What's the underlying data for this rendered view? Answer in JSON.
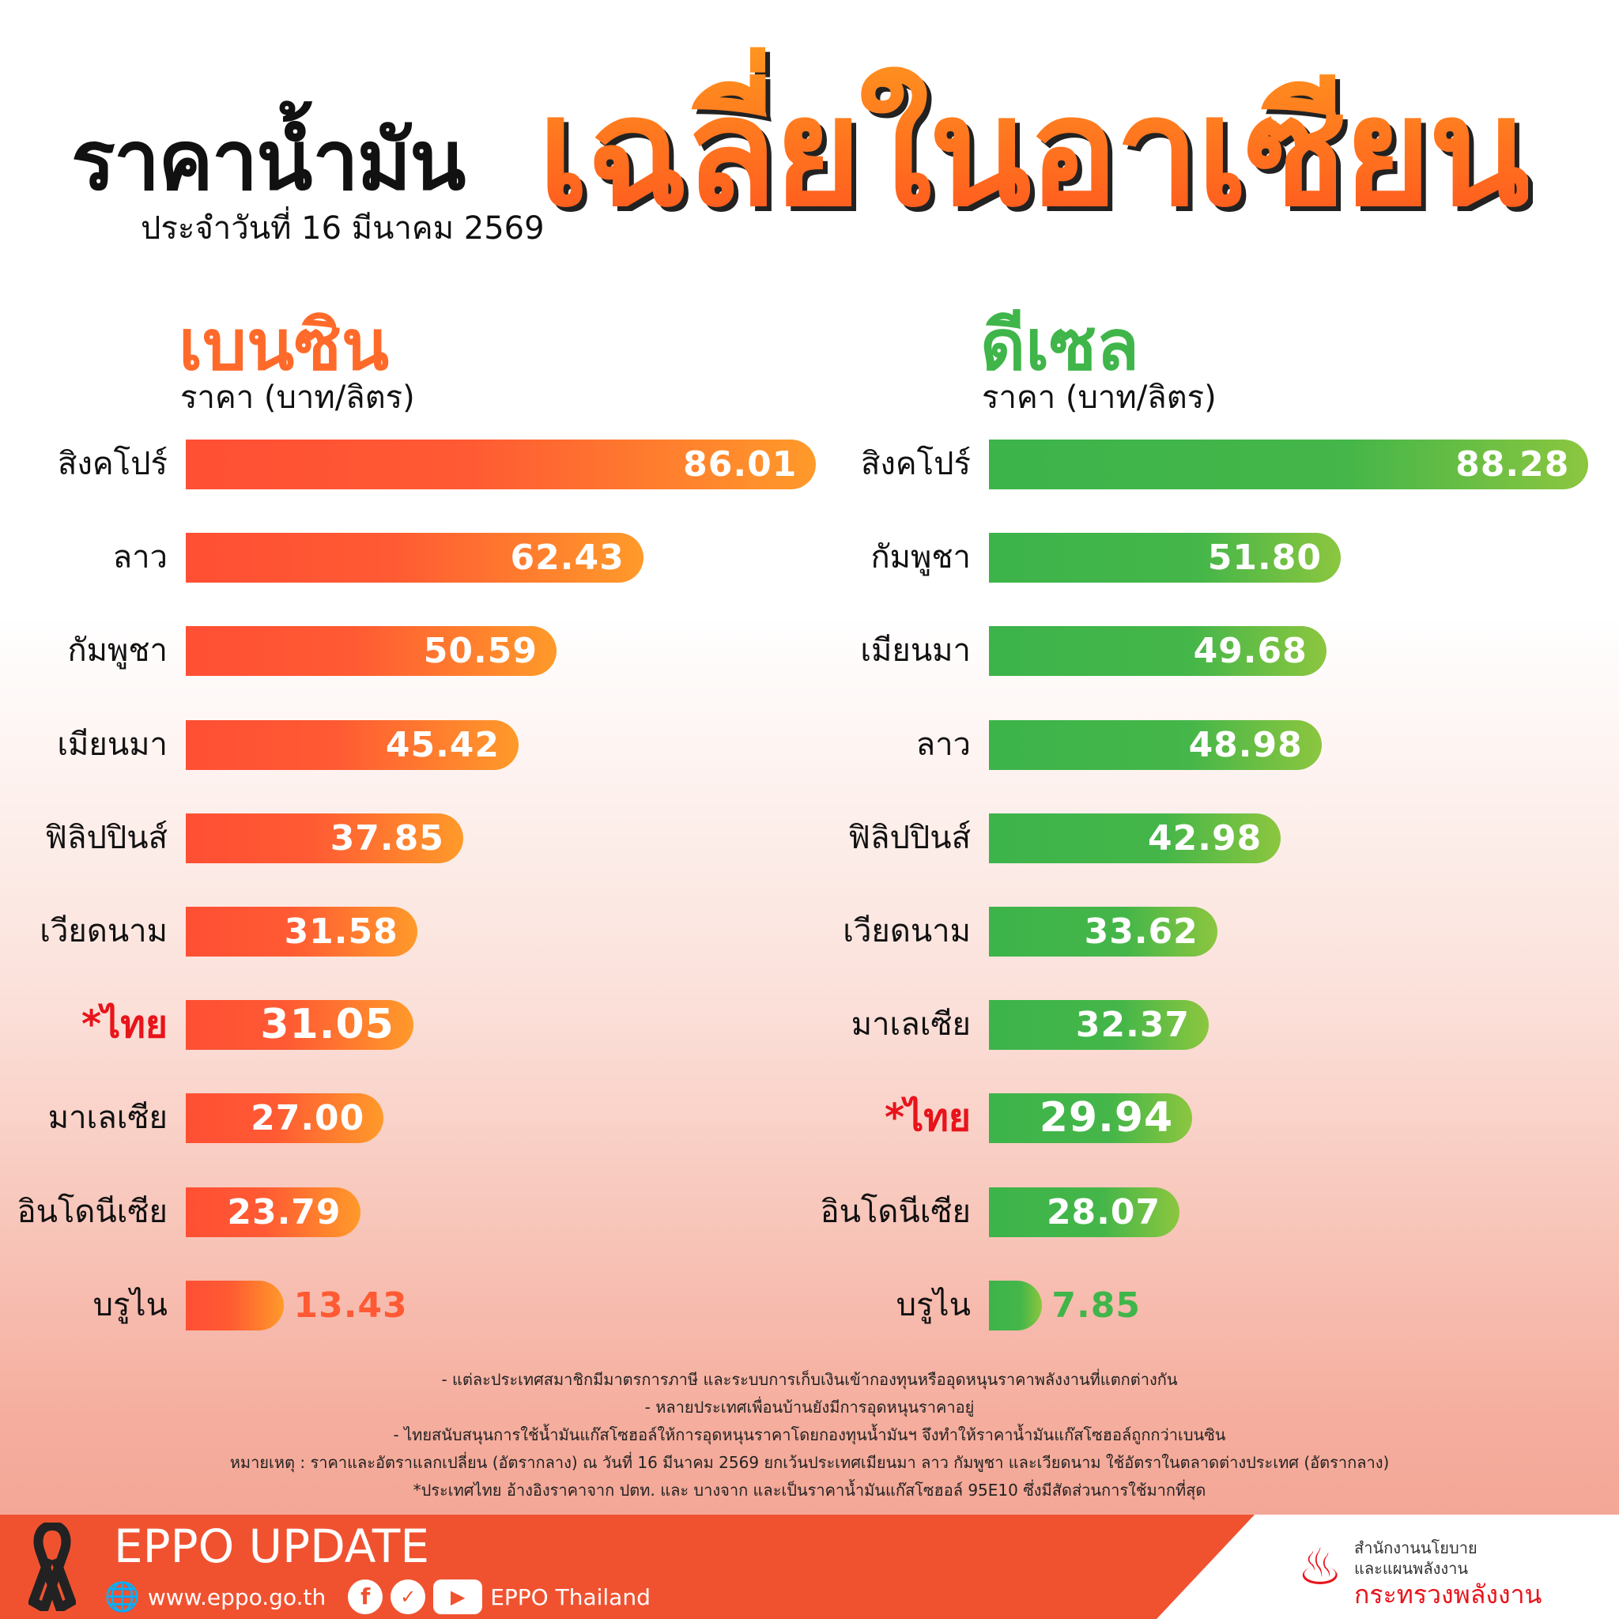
{
  "header": {
    "title_black": "ราคาน้ำมัน",
    "title_orange": "เฉลี่ยในอาเซียน",
    "date": "ประจำวันที่  16 มีนาคม 2569"
  },
  "colors": {
    "gasoline": "#ff5533",
    "diesel": "#3fb54a",
    "thai_label": "#e8141b",
    "footer": "#f05230"
  },
  "gasoline": {
    "title": "เบนซิน",
    "unit": "ราคา (บาท/ลิตร)",
    "rows": [
      {
        "country": "สิงคโปร์",
        "value": 86.01,
        "label": "86.01"
      },
      {
        "country": "ลาว",
        "value": 62.43,
        "label": "62.43"
      },
      {
        "country": "กัมพูชา",
        "value": 50.59,
        "label": "50.59"
      },
      {
        "country": "เมียนมา",
        "value": 45.42,
        "label": "45.42"
      },
      {
        "country": "ฟิลิปปินส์",
        "value": 37.85,
        "label": "37.85"
      },
      {
        "country": "เวียดนาม",
        "value": 31.58,
        "label": "31.58"
      },
      {
        "country": "*ไทย",
        "value": 31.05,
        "label": "31.05",
        "highlight": true
      },
      {
        "country": "มาเลเซีย",
        "value": 27.0,
        "label": "27.00"
      },
      {
        "country": "อินโดนีเซีย",
        "value": 23.79,
        "label": "23.79"
      },
      {
        "country": "บรูไน",
        "value": 13.43,
        "label": "13.43"
      }
    ]
  },
  "diesel": {
    "title": "ดีเซล",
    "unit": "ราคา (บาท/ลิตร)",
    "rows": [
      {
        "country": "สิงคโปร์",
        "value": 88.28,
        "label": "88.28"
      },
      {
        "country": "กัมพูชา",
        "value": 51.8,
        "label": "51.80"
      },
      {
        "country": "เมียนมา",
        "value": 49.68,
        "label": "49.68"
      },
      {
        "country": "ลาว",
        "value": 48.98,
        "label": "48.98"
      },
      {
        "country": "ฟิลิปปินส์",
        "value": 42.98,
        "label": "42.98"
      },
      {
        "country": "เวียดนาม",
        "value": 33.62,
        "label": "33.62"
      },
      {
        "country": "มาเลเซีย",
        "value": 32.37,
        "label": "32.37"
      },
      {
        "country": "*ไทย",
        "value": 29.94,
        "label": "29.94",
        "highlight": true
      },
      {
        "country": "อินโดนีเซีย",
        "value": 28.07,
        "label": "28.07"
      },
      {
        "country": "บรูไน",
        "value": 7.85,
        "label": "7.85"
      }
    ]
  },
  "notes": [
    "- แต่ละประเทศสมาชิกมีมาตรการภาษี และระบบการเก็บเงินเข้ากองทุนหรืออุดหนุนราคาพลังงานที่แตกต่างกัน",
    "- หลายประเทศเพื่อนบ้านยังมีการอุดหนุนราคาอยู่",
    "- ไทยสนับสนุนการใช้น้ำมันแก๊สโซฮอล์ให้การอุดหนุนราคาโดยกองทุนน้ำมันฯ จึงทำให้ราคาน้ำมันแก๊สโซฮอล์ถูกกว่าเบนซิน",
    "หมายเหตุ : ราคาและอัตราแลกเปลี่ยน (อัตรากลาง) ณ วันที่ 16 มีนาคม 2569 ยกเว้นประเทศเมียนมา ลาว กัมพูชา และเวียดนาม ใช้อัตราในตลาดต่างประเทศ (อัตรากลาง)",
    "*ประเทศไทย อ้างอิงราคาจาก ปตท. และ บางจาก และเป็นราคาน้ำมันแก๊สโซฮอล์ 95E10 ซึ่งมีสัดส่วนการใช้มากที่สุด"
  ],
  "footer": {
    "title": "EPPO UPDATE",
    "website": "www.eppo.go.th",
    "social": "EPPO Thailand",
    "org_line1": "สำนักงานนโยบาย",
    "org_line2": "และแผนพลังงาน",
    "ministry": "กระทรวงพลังงาน"
  }
}
